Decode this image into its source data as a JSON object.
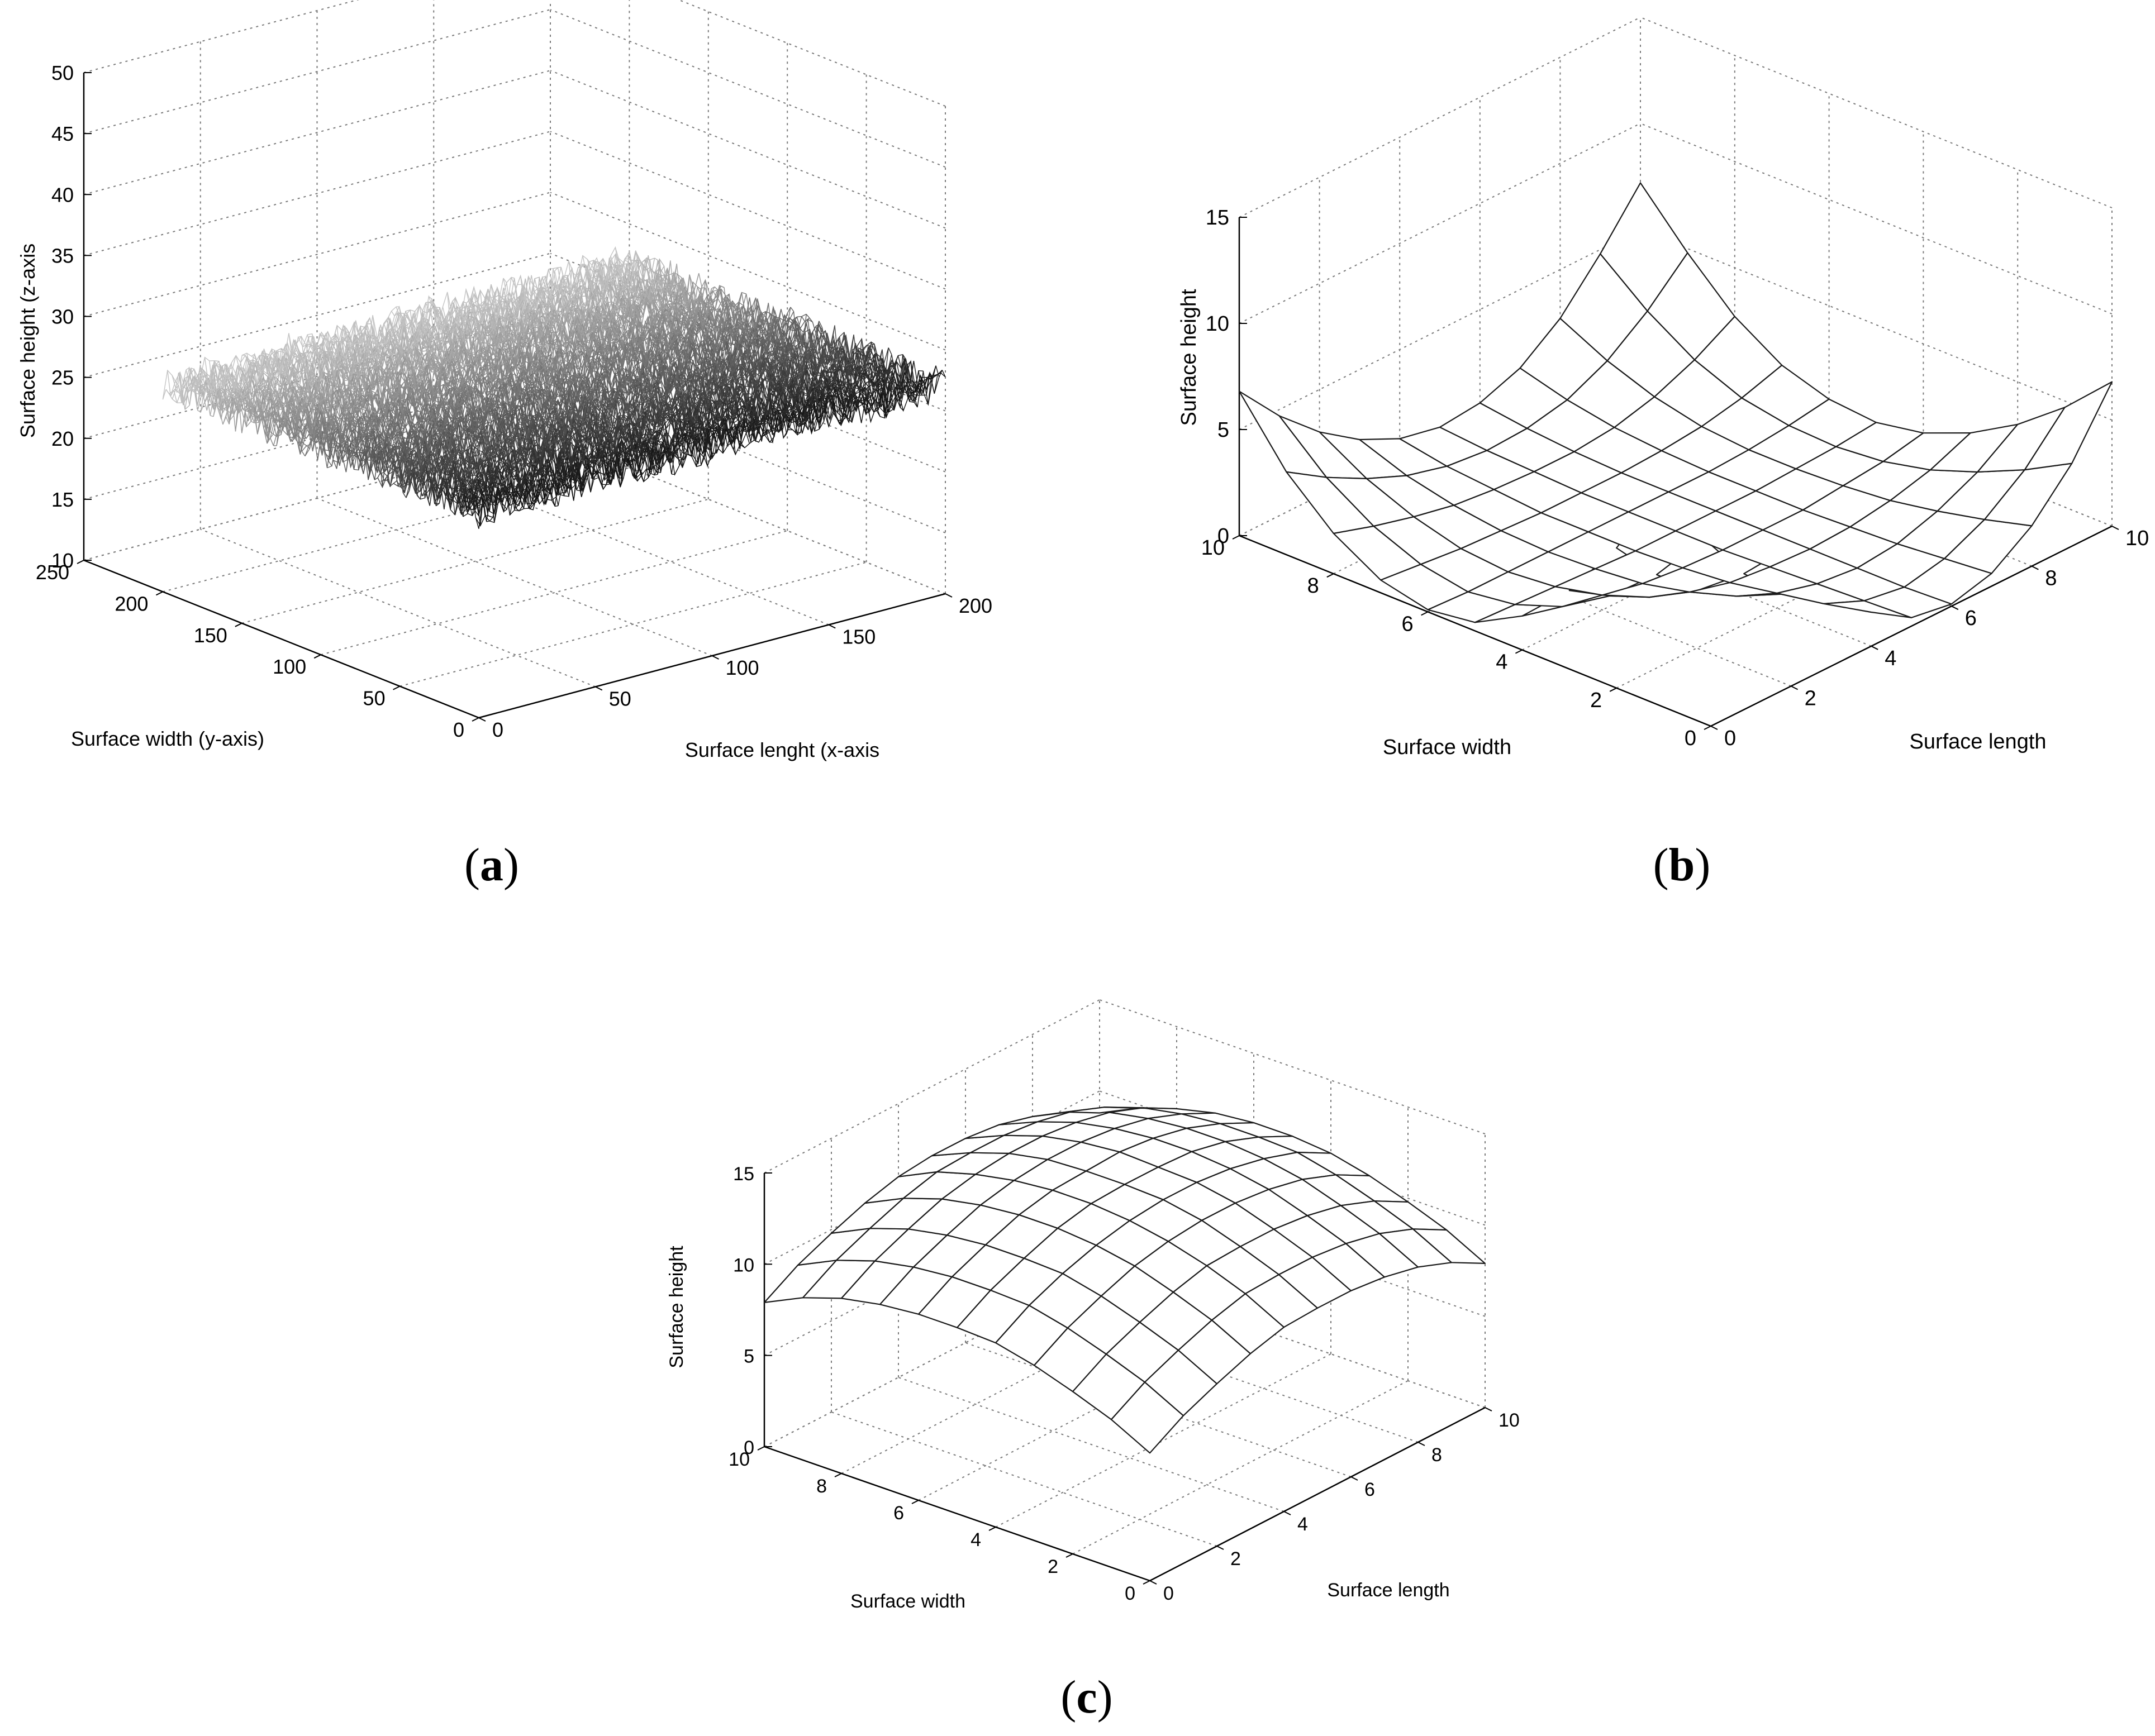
{
  "captions": {
    "a": "a",
    "b": "b",
    "c": "c"
  },
  "chart_data": [
    {
      "id": "a",
      "type": "surface",
      "zlabel": "Surface height (z-axis",
      "ylabel": "Surface width (y-axis)",
      "xlabel": "Surface lenght (x-axis",
      "xlim": [
        0,
        200
      ],
      "ylim": [
        0,
        250
      ],
      "zlim": [
        10,
        50
      ],
      "xticks": [
        "0",
        "50",
        "100",
        "150",
        "200"
      ],
      "yticks": [
        "0",
        "50",
        "100",
        "150",
        "200",
        "250"
      ],
      "zticks": [
        "10",
        "15",
        "20",
        "25",
        "30",
        "35",
        "40",
        "45",
        "50"
      ],
      "grid": "on",
      "surface": {
        "grid_points": 200,
        "mean_height": 27,
        "roughness_amplitude": 1.5
      },
      "colors": {
        "mesh_dark": "#111111",
        "mesh_light": "#c8c8c8",
        "grid": "#7a7a7a"
      }
    },
    {
      "id": "b",
      "type": "surface",
      "zlabel": "Surface height",
      "ylabel": "Surface width",
      "xlabel": "Surface length",
      "xlim": [
        0,
        10
      ],
      "ylim": [
        0,
        10
      ],
      "zlim": [
        0,
        15
      ],
      "xticks": [
        "0",
        "2",
        "4",
        "6",
        "8",
        "10"
      ],
      "yticks": [
        "0",
        "2",
        "4",
        "6",
        "8",
        "10"
      ],
      "zticks": [
        "0",
        "5",
        "10",
        "15"
      ],
      "grid": "on",
      "surface": {
        "x": [
          0,
          1,
          2,
          3,
          4,
          5,
          6,
          7,
          8,
          9,
          10
        ],
        "y": [
          0,
          1,
          2,
          3,
          4,
          5,
          6,
          7,
          8,
          9,
          10
        ],
        "z": [
          [
            15.0,
            10.4,
            6.6,
            3.7,
            1.6,
            0.4,
            0.1,
            0.6,
            1.9,
            3.9,
            6.8
          ],
          [
            10.4,
            7.0,
            4.4,
            2.5,
            1.1,
            0.3,
            0.0,
            0.4,
            1.3,
            2.7,
            4.7
          ],
          [
            6.6,
            4.4,
            2.7,
            1.5,
            0.7,
            0.2,
            0.0,
            0.2,
            0.8,
            1.7,
            3.0
          ],
          [
            3.7,
            2.5,
            1.5,
            0.8,
            0.3,
            0.1,
            0.0,
            0.1,
            0.4,
            0.9,
            1.7
          ],
          [
            1.6,
            1.1,
            0.7,
            0.3,
            0.1,
            0.0,
            0.0,
            0.0,
            0.2,
            0.4,
            0.8
          ],
          [
            0.4,
            0.3,
            0.2,
            0.1,
            0.0,
            0.0,
            0.0,
            0.0,
            0.1,
            0.2,
            0.4
          ],
          [
            0.1,
            0.0,
            0.0,
            0.0,
            0.0,
            0.0,
            0.0,
            0.0,
            0.1,
            0.3,
            0.6
          ],
          [
            0.6,
            0.4,
            0.2,
            0.1,
            0.0,
            0.0,
            0.0,
            0.1,
            0.3,
            0.7,
            1.3
          ],
          [
            1.9,
            1.3,
            0.8,
            0.4,
            0.2,
            0.1,
            0.1,
            0.3,
            0.8,
            1.6,
            2.7
          ],
          [
            3.9,
            2.7,
            1.7,
            0.9,
            0.4,
            0.2,
            0.3,
            0.7,
            1.6,
            3.0,
            4.8
          ],
          [
            6.8,
            4.7,
            3.0,
            1.7,
            0.8,
            0.4,
            0.6,
            1.3,
            2.7,
            4.8,
            7.2
          ]
        ]
      },
      "colors": {
        "mesh": "#1a1a1a",
        "face": "#ffffff",
        "grid": "#7a7a7a"
      }
    },
    {
      "id": "c",
      "type": "surface",
      "zlabel": "Surface height",
      "ylabel": "Surface width",
      "xlabel": "Surface length",
      "xlim": [
        0,
        10
      ],
      "ylim": [
        0,
        10
      ],
      "zlim": [
        0,
        15
      ],
      "xticks": [
        "0",
        "2",
        "4",
        "6",
        "8",
        "10"
      ],
      "yticks": [
        "0",
        "2",
        "4",
        "6",
        "8",
        "10"
      ],
      "zticks": [
        "0",
        "5",
        "10",
        "15"
      ],
      "grid": "on",
      "surface": {
        "x": [
          0,
          1,
          2,
          3,
          4,
          5,
          6,
          7,
          8,
          9,
          10
        ],
        "y": [
          0,
          1,
          2,
          3,
          4,
          5,
          6,
          7,
          8,
          9,
          10
        ],
        "z": [
          [
            7.0,
            8.1,
            8.9,
            9.6,
            10.1,
            10.2,
            10.2,
            10.0,
            9.6,
            8.9,
            7.9
          ],
          [
            8.1,
            9.2,
            10.0,
            10.7,
            11.2,
            11.3,
            11.3,
            11.1,
            10.7,
            10.0,
            9.0
          ],
          [
            8.9,
            10.0,
            10.8,
            11.5,
            12.0,
            12.1,
            12.1,
            11.9,
            11.5,
            10.8,
            9.8
          ],
          [
            9.6,
            10.7,
            11.5,
            12.2,
            12.6,
            12.8,
            12.8,
            12.6,
            12.2,
            11.5,
            10.5
          ],
          [
            10.1,
            11.2,
            12.0,
            12.6,
            13.0,
            13.2,
            13.2,
            13.0,
            12.6,
            12.0,
            11.0
          ],
          [
            10.2,
            11.3,
            12.1,
            12.8,
            13.2,
            13.3,
            13.3,
            13.2,
            12.8,
            12.1,
            11.2
          ],
          [
            10.2,
            11.3,
            12.1,
            12.8,
            13.2,
            13.3,
            13.4,
            13.2,
            12.8,
            12.1,
            11.2
          ],
          [
            10.0,
            11.1,
            11.9,
            12.6,
            13.0,
            13.2,
            13.2,
            13.0,
            12.6,
            11.9,
            11.0
          ],
          [
            9.6,
            10.7,
            11.5,
            12.2,
            12.6,
            12.8,
            12.8,
            12.6,
            12.2,
            11.5,
            10.5
          ],
          [
            8.9,
            10.0,
            10.8,
            11.5,
            12.0,
            12.1,
            12.1,
            11.9,
            11.5,
            10.8,
            9.8
          ],
          [
            7.9,
            9.0,
            9.8,
            10.5,
            11.0,
            11.2,
            11.2,
            11.0,
            10.5,
            9.8,
            8.8
          ]
        ]
      },
      "colors": {
        "mesh": "#1a1a1a",
        "face": "#ffffff",
        "grid": "#7a7a7a"
      }
    }
  ]
}
